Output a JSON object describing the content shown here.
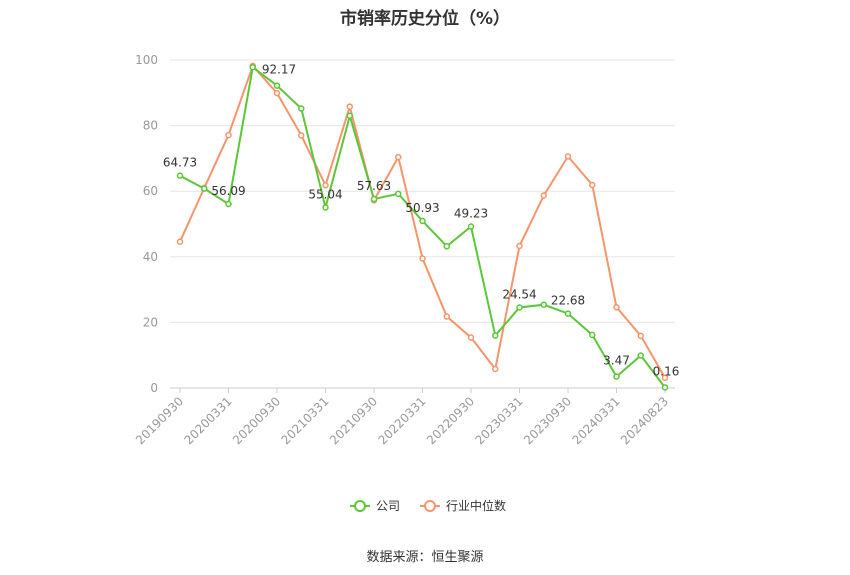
{
  "chart_data": {
    "type": "line",
    "title": "市销率历史分位（%）",
    "source": "数据来源：恒生聚源",
    "ylim": [
      0,
      100
    ],
    "yticks": [
      0,
      20,
      40,
      60,
      80,
      100
    ],
    "xtick_labels": [
      "20190930",
      "20200331",
      "20200930",
      "20210331",
      "20210930",
      "20220331",
      "20220930",
      "20230331",
      "20230930",
      "20240331",
      "20240823"
    ],
    "x": [
      "20190930",
      "20191231",
      "20200331",
      "20200630",
      "20200930",
      "20201231",
      "20210331",
      "20210630",
      "20210930",
      "20211231",
      "20220331",
      "20220630",
      "20220930",
      "20221231",
      "20230331",
      "20230630",
      "20230930",
      "20231231",
      "20240331",
      "20240630",
      "20240823"
    ],
    "grid": true,
    "legend": "bottom",
    "series": [
      {
        "name": "公司",
        "color": "#5ac738",
        "values": [
          64.73,
          60.8,
          56.09,
          97.8,
          92.17,
          85.2,
          55.04,
          83.0,
          57.63,
          59.2,
          50.93,
          43.2,
          49.23,
          16.0,
          24.54,
          25.4,
          22.68,
          16.2,
          3.47,
          9.9,
          0.16
        ],
        "labels": {
          "0": "64.73",
          "2": "56.09",
          "4": "92.17",
          "6": "55.04",
          "8": "57.63",
          "10": "50.93",
          "12": "49.23",
          "14": "24.54",
          "16": "22.68",
          "18": "3.47",
          "20": "0.16"
        }
      },
      {
        "name": "行业中位数",
        "color": "#f5956b",
        "values": [
          44.6,
          61.0,
          77.1,
          98.2,
          89.9,
          77.0,
          61.8,
          85.8,
          57.2,
          70.4,
          39.5,
          21.8,
          15.4,
          5.8,
          43.3,
          58.7,
          70.6,
          61.9,
          24.6,
          15.9,
          3.1
        ]
      }
    ]
  }
}
